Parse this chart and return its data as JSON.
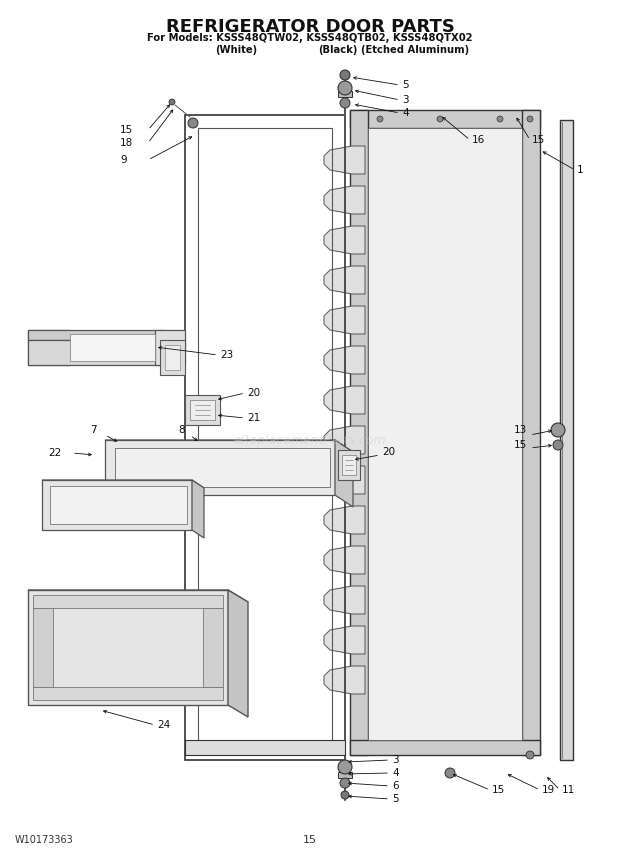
{
  "title_line1": "REFRIGERATOR DOOR PARTS",
  "title_line2": "For Models: KSSS48QTW02, KSSS48QTB02, KSSS48QTX02",
  "title_line3_left": "(White)",
  "title_line3_mid": "(Black)",
  "title_line3_right": "(Etched Aluminum)",
  "footer_left": "W10173363",
  "footer_center": "15",
  "watermark": "eReplacementParts.com",
  "bg_color": "#ffffff",
  "fg_color": "#111111"
}
